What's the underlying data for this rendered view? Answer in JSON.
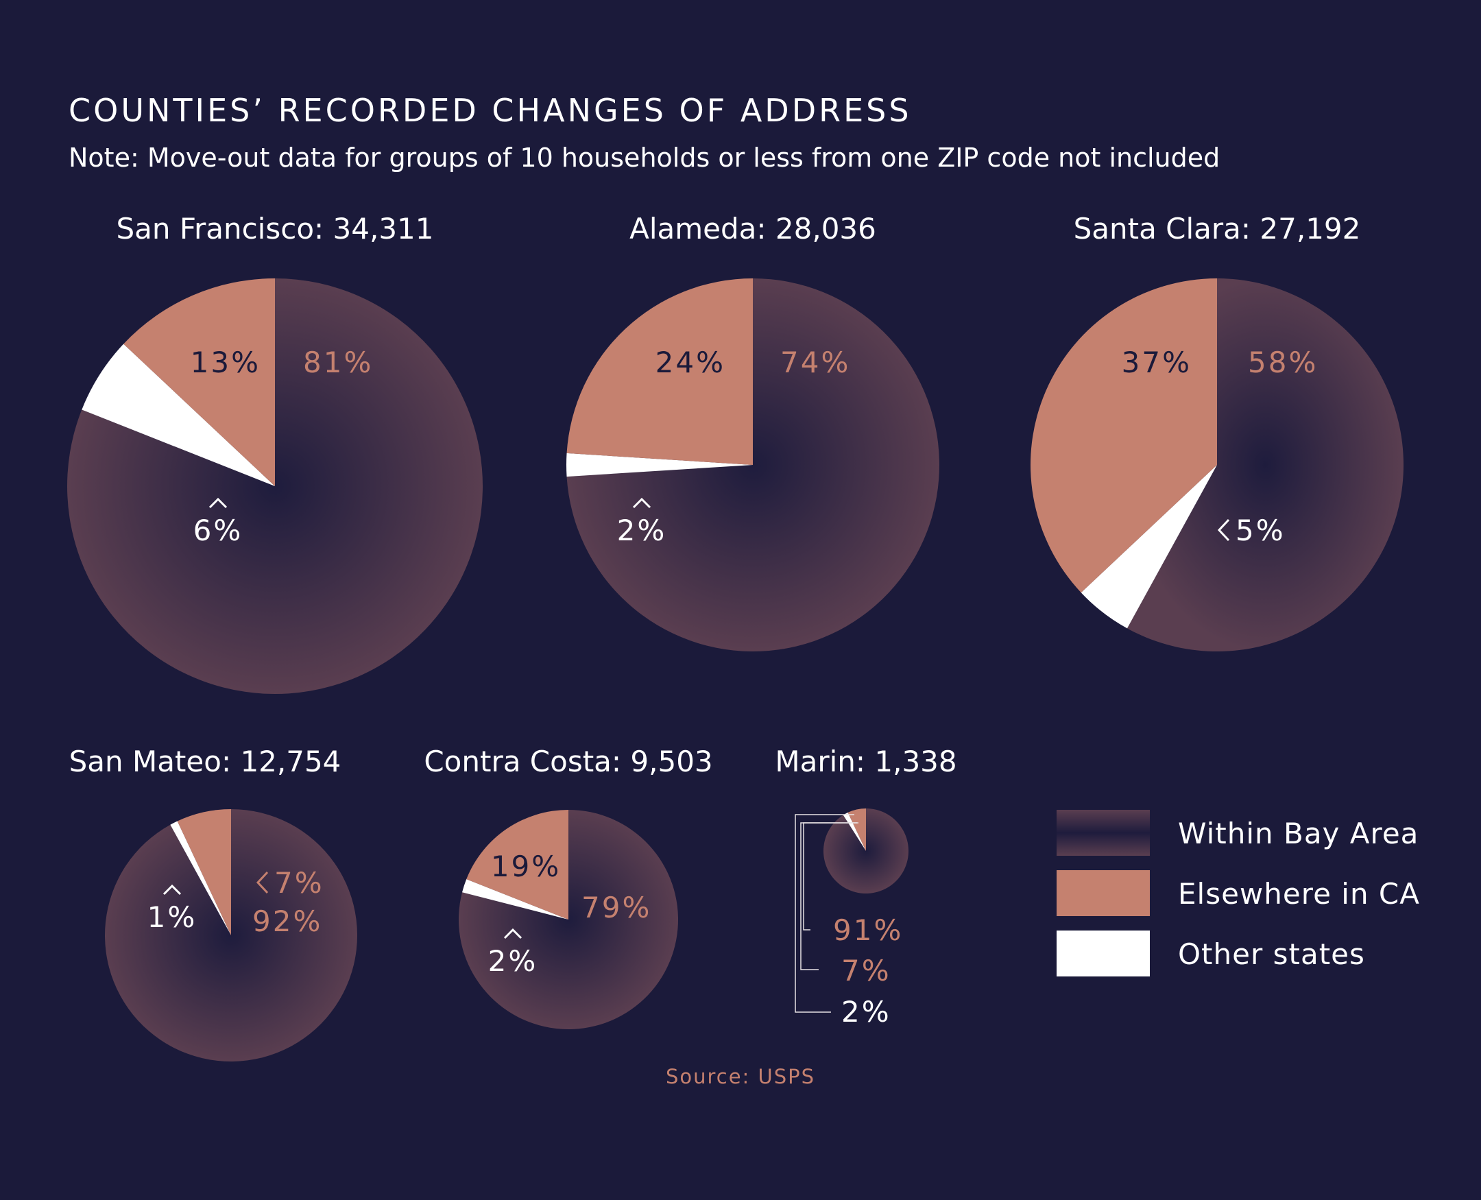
{
  "title": "COUNTIES’ RECORDED CHANGES OF ADDRESS",
  "note": "Note: Move-out data for groups of 10 households or less from one ZIP code not included",
  "source": "Source:  USPS",
  "colors": {
    "background": "#1b1a3a",
    "within_bay_area_center": "#1e1c3d",
    "within_bay_area_edge": "#5a3e50",
    "elsewhere_in_ca": "#c5816f",
    "other_states": "#ffffff",
    "dark_label": "#1b1a3a"
  },
  "legend": [
    {
      "key": "within",
      "label": "Within Bay Area"
    },
    {
      "key": "elsewhere",
      "label": "Elsewhere in CA"
    },
    {
      "key": "other",
      "label": "Other states"
    }
  ],
  "chart_data": {
    "type": "pie",
    "categories": [
      "Within Bay Area",
      "Elsewhere in CA",
      "Other states"
    ],
    "counties": [
      {
        "name": "San Francisco",
        "total": "34,311",
        "heading": "San Francisco: 34,311",
        "values": [
          81,
          13,
          6
        ],
        "labels": [
          "81%",
          "13%",
          "6%"
        ]
      },
      {
        "name": "Alameda",
        "total": "28,036",
        "heading": "Alameda: 28,036",
        "values": [
          74,
          24,
          2
        ],
        "labels": [
          "74%",
          "24%",
          "2%"
        ]
      },
      {
        "name": "Santa Clara",
        "total": "27,192",
        "heading": "Santa Clara: 27,192",
        "values": [
          58,
          37,
          5
        ],
        "labels": [
          "58%",
          "37%",
          "5%"
        ]
      },
      {
        "name": "San Mateo",
        "total": "12,754",
        "heading": "San Mateo: 12,754",
        "values": [
          92,
          7,
          1
        ],
        "labels": [
          "92%",
          "7%",
          "1%"
        ]
      },
      {
        "name": "Contra Costa",
        "total": "9,503",
        "heading": "Contra Costa: 9,503",
        "values": [
          79,
          19,
          2
        ],
        "labels": [
          "79%",
          "19%",
          "2%"
        ]
      },
      {
        "name": "Marin",
        "total": "1,338",
        "heading": "Marin: 1,338",
        "values": [
          91,
          7,
          2
        ],
        "labels": [
          "91%",
          "7%",
          "2%"
        ]
      }
    ]
  }
}
